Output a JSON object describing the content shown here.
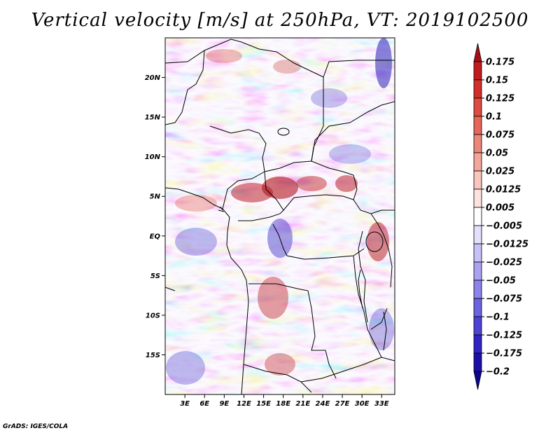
{
  "title": "Vertical velocity [m/s] at 250hPa, VT: 2019102500",
  "credit": "GrADS: IGES/COLA",
  "map": {
    "lon_range": [
      0,
      35
    ],
    "lat_range": [
      -20,
      25
    ],
    "lat_ticks": [
      {
        "value": 20,
        "label": "20N"
      },
      {
        "value": 15,
        "label": "15N"
      },
      {
        "value": 10,
        "label": "10N"
      },
      {
        "value": 5,
        "label": "5N"
      },
      {
        "value": 0,
        "label": "EQ"
      },
      {
        "value": -5,
        "label": "5S"
      },
      {
        "value": -10,
        "label": "10S"
      },
      {
        "value": -15,
        "label": "15S"
      }
    ],
    "lon_ticks": [
      {
        "value": 3,
        "label": "3E"
      },
      {
        "value": 6,
        "label": "6E"
      },
      {
        "value": 9,
        "label": "9E"
      },
      {
        "value": 12,
        "label": "12E"
      },
      {
        "value": 15,
        "label": "15E"
      },
      {
        "value": 18,
        "label": "18E"
      },
      {
        "value": 21,
        "label": "21E"
      },
      {
        "value": 24,
        "label": "24E"
      },
      {
        "value": 27,
        "label": "27E"
      },
      {
        "value": 30,
        "label": "30E"
      },
      {
        "value": 33,
        "label": "33E"
      }
    ]
  },
  "colorbar": {
    "labels": [
      "0.175",
      "0.15",
      "0.125",
      "0.1",
      "0.075",
      "0.05",
      "0.025",
      "0.0125",
      "0.005",
      "−0.005",
      "−0.0125",
      "−0.025",
      "−0.05",
      "−0.075",
      "−0.1",
      "−0.125",
      "−0.175",
      "−0.2"
    ],
    "colors": [
      "#a50f15",
      "#c21b1f",
      "#d32f2a",
      "#de4b43",
      "#e5675c",
      "#ec8679",
      "#f3a79b",
      "#f8c6bd",
      "#fce3de",
      "#ffffff",
      "#e2e0fb",
      "#c7c2f6",
      "#aaa3f0",
      "#8c84ea",
      "#6c63e0",
      "#4d43d4",
      "#3024c2",
      "#1a10a8",
      "#0d0590"
    ]
  }
}
